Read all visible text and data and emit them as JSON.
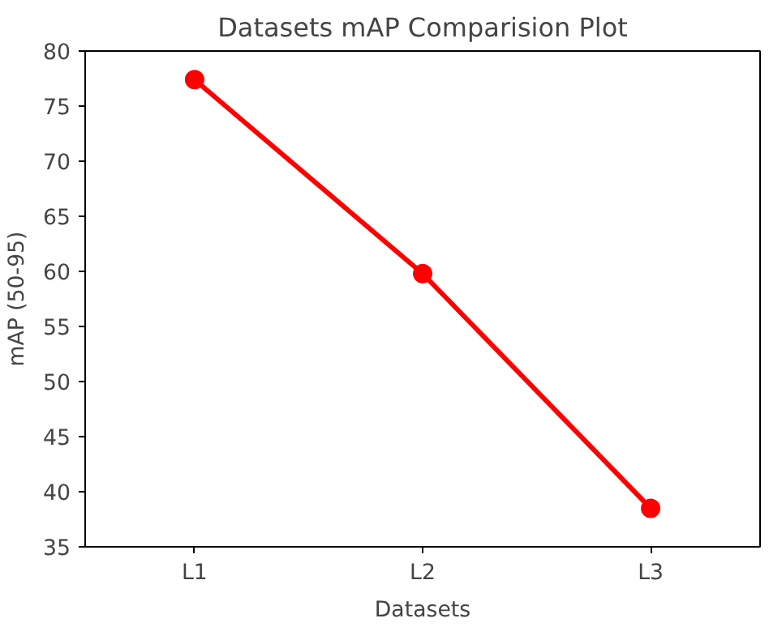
{
  "chart_data": {
    "type": "line",
    "title": "Datasets mAP Comparision Plot",
    "xlabel": "Datasets",
    "ylabel": "mAP (50-95)",
    "categories": [
      "L1",
      "L2",
      "L3"
    ],
    "series": [
      {
        "color": "#ff0000",
        "values": [
          77.4,
          59.8,
          38.5
        ]
      }
    ],
    "ylim": [
      35,
      80
    ],
    "yticks": [
      35,
      40,
      45,
      50,
      55,
      60,
      65,
      70,
      75,
      80
    ],
    "marker": "circle",
    "line_style": "solid",
    "grid": false
  }
}
